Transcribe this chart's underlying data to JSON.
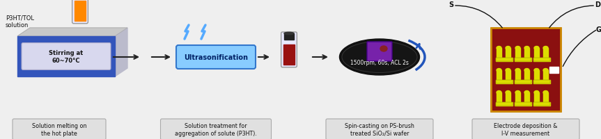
{
  "bg_color": "#efefef",
  "caption1": "Solution melting on\nthe hot plate",
  "caption2": "Solution treatment for\naggregation of solute (P3HT).",
  "caption3": "Spin-casting on PS-brush\ntreated SiO₂/Si wafer",
  "caption4": "Electrode deposition &\nI-V measurement",
  "label1": "P3HT/TOL\nsolution",
  "label2": "Ultrasonification",
  "label3": "1500rpm, 60s, ACL 2s",
  "label4": "Stirring at\n60~70°C",
  "hotplate_blue": "#3355bb",
  "hotplate_dark": "#1133aa",
  "hotplate_top": "#c8c8c8",
  "hotplate_side": "#bbbbcc",
  "box_fill": "#88ccff",
  "box_edge": "#3377cc",
  "vial_orange": "#ff8800",
  "vial_red": "#991111",
  "vial_glass": "#e8e8ff",
  "vial_cap": "#222222",
  "chip_bg": "#8B1010",
  "chip_border": "#cc8800",
  "electrode_yellow": "#dddd00",
  "electrode_dark": "#888800",
  "caption_box_color": "#e0e0e0",
  "caption_box_edge": "#aaaaaa",
  "arrow_color": "#222222",
  "lightning_color": "#55aaff",
  "spin_arrow_color": "#2255bb",
  "s_label": "S",
  "d_label": "D",
  "g_label": "G",
  "label_color": "#111111"
}
